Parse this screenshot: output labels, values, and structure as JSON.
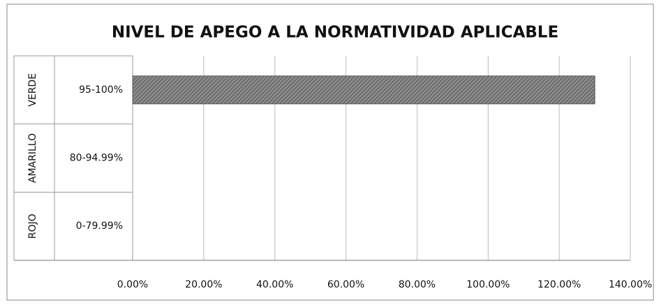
{
  "chart_data": {
    "type": "bar",
    "orientation": "horizontal",
    "title": "NIVEL DE APEGO A LA NORMATIVIDAD APLICABLE",
    "groups": [
      "VERDE",
      "AMARILLO",
      "ROJO"
    ],
    "categories": [
      "95-100%",
      "80-94.99%",
      "0-79.99%"
    ],
    "values": [
      130,
      null,
      null
    ],
    "color": "#7a7a7a",
    "xlim": [
      0,
      140
    ],
    "xticks": [
      {
        "value": 0,
        "label": "0.00%"
      },
      {
        "value": 20,
        "label": "20.00%"
      },
      {
        "value": 40,
        "label": "40.00%"
      },
      {
        "value": 60,
        "label": "60.00%"
      },
      {
        "value": 80,
        "label": "80.00%"
      },
      {
        "value": 100,
        "label": "100.00%"
      },
      {
        "value": 120,
        "label": "120.00%"
      },
      {
        "value": 140,
        "label": "140.00%"
      }
    ],
    "grid": true
  }
}
